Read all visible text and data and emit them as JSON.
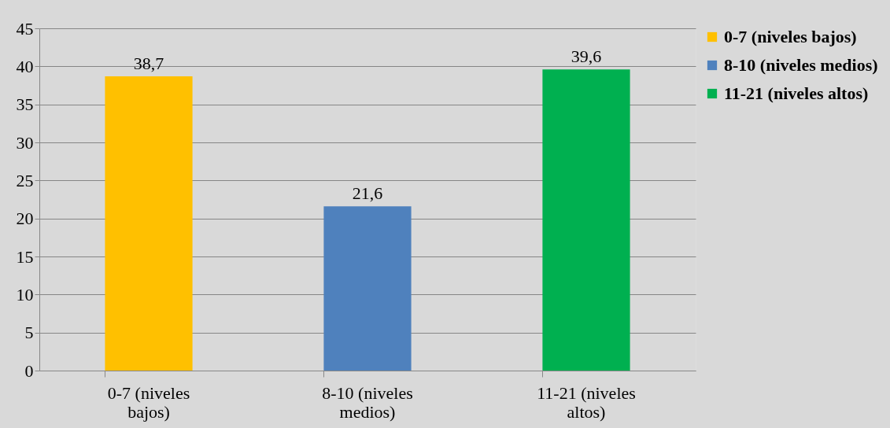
{
  "chart_data": {
    "type": "bar",
    "categories": [
      "0-7 (niveles bajos)",
      "8-10 (niveles medios)",
      "11-21 (niveles altos)"
    ],
    "series": [
      {
        "name": "0-7 (niveles bajos)",
        "color": "#ffc000",
        "values": [
          38.7,
          null,
          null
        ],
        "value_labels": [
          "38,7",
          null,
          null
        ]
      },
      {
        "name": "8-10 (niveles medios)",
        "color": "#4f81bd",
        "values": [
          null,
          21.6,
          null
        ],
        "value_labels": [
          null,
          "21,6",
          null
        ]
      },
      {
        "name": "11-21 (niveles altos)",
        "color": "#00b050",
        "values": [
          null,
          null,
          39.6
        ],
        "value_labels": [
          null,
          null,
          "39,6"
        ]
      }
    ],
    "ylim": [
      0,
      45
    ],
    "yticks": [
      0,
      5,
      10,
      15,
      20,
      25,
      30,
      35,
      40,
      45
    ],
    "grid": "y",
    "legend": "right"
  }
}
